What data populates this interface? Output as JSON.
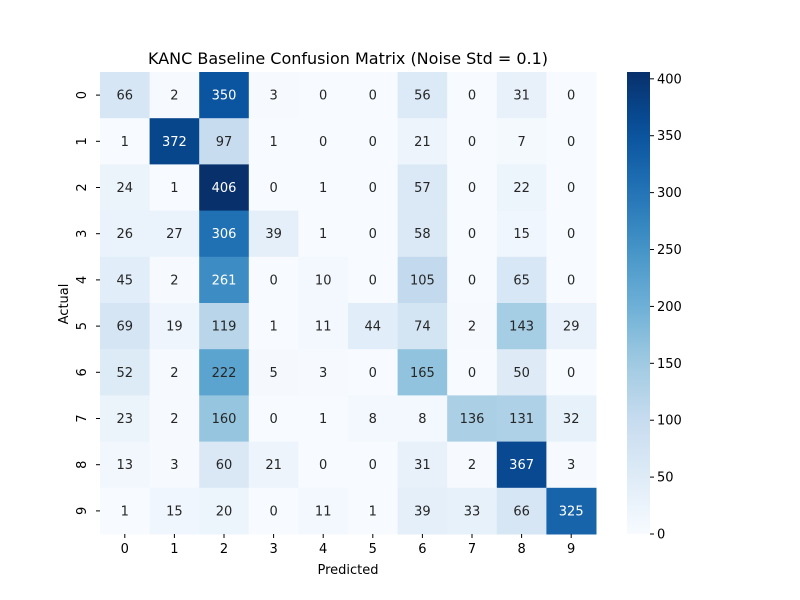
{
  "chart_data": {
    "type": "heatmap",
    "title": "KANC Baseline Confusion Matrix (Noise Std = 0.1)",
    "xlabel": "Predicted",
    "ylabel": "Actual",
    "x_categories": [
      "0",
      "1",
      "2",
      "3",
      "4",
      "5",
      "6",
      "7",
      "8",
      "9"
    ],
    "y_categories": [
      "0",
      "1",
      "2",
      "3",
      "4",
      "5",
      "6",
      "7",
      "8",
      "9"
    ],
    "values": [
      [
        66,
        2,
        350,
        3,
        0,
        0,
        56,
        0,
        31,
        0
      ],
      [
        1,
        372,
        97,
        1,
        0,
        0,
        21,
        0,
        7,
        0
      ],
      [
        24,
        1,
        406,
        0,
        1,
        0,
        57,
        0,
        22,
        0
      ],
      [
        26,
        27,
        306,
        39,
        1,
        0,
        58,
        0,
        15,
        0
      ],
      [
        45,
        2,
        261,
        0,
        10,
        0,
        105,
        0,
        65,
        0
      ],
      [
        69,
        19,
        119,
        1,
        11,
        44,
        74,
        2,
        143,
        29
      ],
      [
        52,
        2,
        222,
        5,
        3,
        0,
        165,
        0,
        50,
        0
      ],
      [
        23,
        2,
        160,
        0,
        1,
        8,
        8,
        136,
        131,
        32
      ],
      [
        13,
        3,
        60,
        21,
        0,
        0,
        31,
        2,
        367,
        3
      ],
      [
        1,
        15,
        20,
        0,
        11,
        1,
        39,
        33,
        66,
        325
      ]
    ],
    "colormap": "Blues",
    "vmin": 0,
    "vmax": 406,
    "colorbar_ticks": [
      0,
      50,
      100,
      150,
      200,
      250,
      300,
      350,
      400
    ],
    "grid": false
  }
}
